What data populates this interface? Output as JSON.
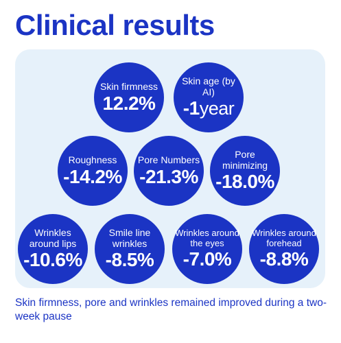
{
  "title": "Clinical results",
  "metrics": [
    {
      "label": "Skin firmness",
      "value": "12.2%"
    },
    {
      "label": "Skin age (by AI)",
      "value": "-1",
      "unit": "year"
    },
    {
      "label": "Roughness",
      "value": "-14.2%"
    },
    {
      "label": "Pore Numbers",
      "value": "-21.3%"
    },
    {
      "label": "Pore minimizing",
      "value": "-18.0%"
    },
    {
      "label": "Wrinkles around lips",
      "value": "-10.6%"
    },
    {
      "label": "Smile line wrinkles",
      "value": "-8.5%"
    },
    {
      "label": "Wrinkles around the eyes",
      "value": "-7.0%"
    },
    {
      "label": "Wrinkles around forehead",
      "value": "-8.8%"
    }
  ],
  "footer": "Skin firmness, pore and wrinkles remained improved during a two-week pause",
  "colors": {
    "accent": "#1b34c4",
    "panel": "#e6f1fa"
  }
}
